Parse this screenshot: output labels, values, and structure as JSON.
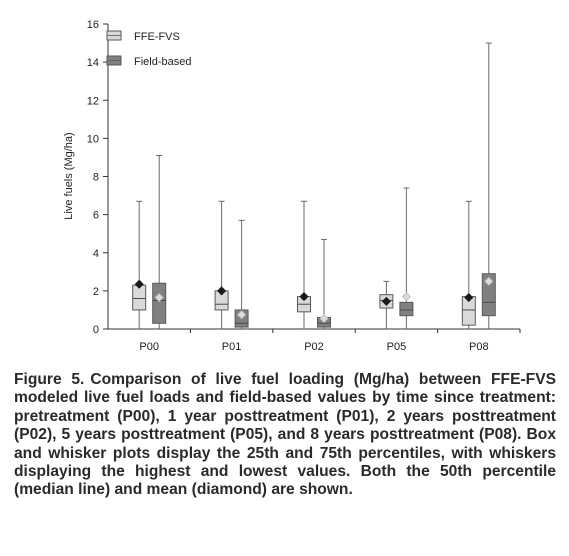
{
  "chart_data": {
    "type": "boxplot",
    "ylabel": "Live fuels (Mg/ha)",
    "xlabel": "",
    "ylim": [
      0,
      16
    ],
    "yticks": [
      0,
      2,
      4,
      6,
      8,
      10,
      12,
      14,
      16
    ],
    "grid": false,
    "legend_position": "top-left",
    "categories": [
      "P00",
      "P01",
      "P02",
      "P05",
      "P08"
    ],
    "series": [
      {
        "name": "FFE-FVS",
        "color": "#d9d9d9",
        "boxes": [
          {
            "min": 0.0,
            "q1": 1.0,
            "median": 1.6,
            "q3": 2.3,
            "max": 6.7,
            "mean": 2.35
          },
          {
            "min": 0.0,
            "q1": 1.0,
            "median": 1.3,
            "q3": 2.0,
            "max": 6.7,
            "mean": 2.0
          },
          {
            "min": 0.0,
            "q1": 0.9,
            "median": 1.3,
            "q3": 1.7,
            "max": 6.7,
            "mean": 1.7
          },
          {
            "min": 0.0,
            "q1": 1.1,
            "median": 1.5,
            "q3": 1.8,
            "max": 2.5,
            "mean": 1.45
          },
          {
            "min": 0.0,
            "q1": 0.2,
            "median": 1.0,
            "q3": 1.7,
            "max": 6.7,
            "mean": 1.65
          }
        ]
      },
      {
        "name": "Field-based",
        "color": "#808080",
        "boxes": [
          {
            "min": 0.0,
            "q1": 0.3,
            "median": 1.5,
            "q3": 2.4,
            "max": 9.1,
            "mean": 1.65
          },
          {
            "min": 0.0,
            "q1": 0.1,
            "median": 0.3,
            "q3": 1.0,
            "max": 5.7,
            "mean": 0.75
          },
          {
            "min": 0.0,
            "q1": 0.1,
            "median": 0.3,
            "q3": 0.6,
            "max": 4.7,
            "mean": 0.55
          },
          {
            "min": 0.0,
            "q1": 0.7,
            "median": 1.0,
            "q3": 1.4,
            "max": 7.4,
            "mean": 1.7
          },
          {
            "min": 0.0,
            "q1": 0.7,
            "median": 1.4,
            "q3": 2.9,
            "max": 15.0,
            "mean": 2.5
          }
        ]
      }
    ]
  },
  "caption": {
    "label": "Figure 5.",
    "text": "Comparison of live fuel loading (Mg/ha) between FFE-FVS modeled live fuel loads and field-based values by time since treatment: pretreatment (P00), 1 year posttreatment (P01), 2 years posttreatment (P02), 5 years posttreatment (P05), and 8 years posttreatment (P08). Box and whisker plots display the 25th and 75th percentiles, with whiskers displaying the highest and lowest values. Both the 50th percentile (median line) and mean (diamond) are shown."
  }
}
